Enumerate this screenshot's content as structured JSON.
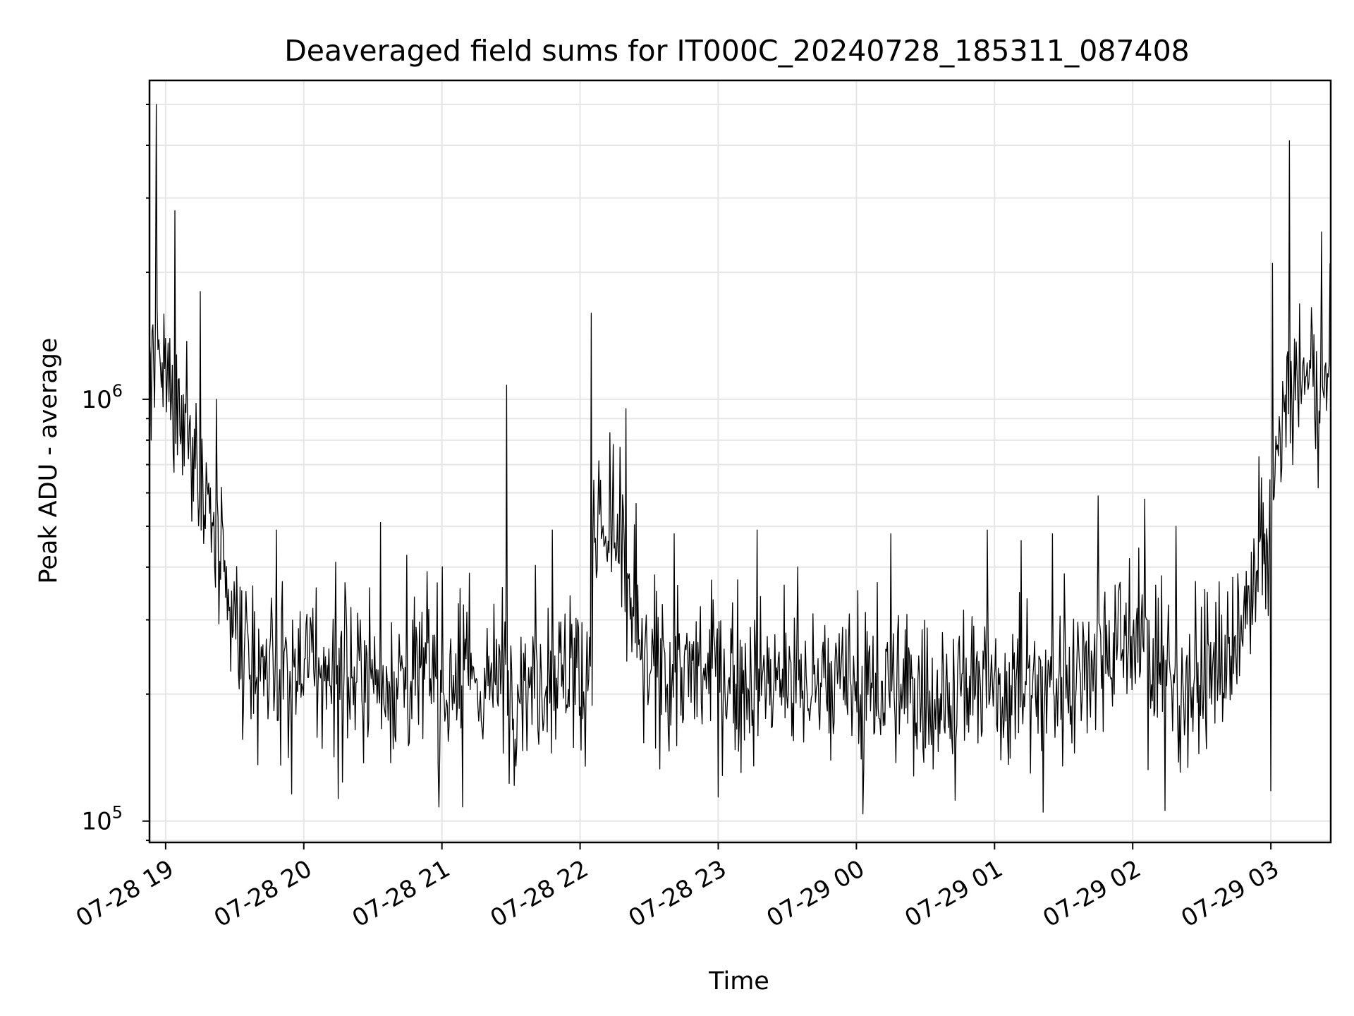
{
  "chart_data": {
    "type": "line",
    "title": "Deaveraged field sums for IT000C_20240728_185311_087408",
    "xlabel": "Time",
    "ylabel": "Peak ADU - average",
    "yscale": "log",
    "ylim": [
      89000,
      5700000
    ],
    "xlim": [
      "2024-07-28 18:53",
      "2024-07-29 03:26"
    ],
    "x_ticks": [
      "07-28 19",
      "07-28 20",
      "07-28 21",
      "07-28 22",
      "07-28 23",
      "07-29 00",
      "07-29 01",
      "07-29 02",
      "07-29 03"
    ],
    "y_ticks": [
      {
        "value": 100000,
        "base": "10",
        "exp": "5"
      },
      {
        "value": 1000000,
        "base": "10",
        "exp": "6"
      }
    ],
    "grid": true,
    "line_color": "#000000",
    "series": [
      {
        "profile": [
          {
            "t": "2024-07-28 18:53",
            "y": 1150000
          },
          {
            "t": "2024-07-28 19:03",
            "y": 1050000
          },
          {
            "t": "2024-07-28 19:11",
            "y": 800000
          },
          {
            "t": "2024-07-28 19:18",
            "y": 560000
          },
          {
            "t": "2024-07-28 19:26",
            "y": 330000
          },
          {
            "t": "2024-07-28 19:35",
            "y": 230000
          },
          {
            "t": "2024-07-28 20:30",
            "y": 220000
          },
          {
            "t": "2024-07-28 21:30",
            "y": 210000
          },
          {
            "t": "2024-07-28 21:55",
            "y": 230000
          },
          {
            "t": "2024-07-28 22:03",
            "y": 220000
          },
          {
            "t": "2024-07-28 22:07",
            "y": 480000
          },
          {
            "t": "2024-07-28 22:18",
            "y": 430000
          },
          {
            "t": "2024-07-28 22:22",
            "y": 330000
          },
          {
            "t": "2024-07-28 22:26",
            "y": 230000
          },
          {
            "t": "2024-07-28 23:30",
            "y": 210000
          },
          {
            "t": "2024-07-29 00:30",
            "y": 200000
          },
          {
            "t": "2024-07-29 01:30",
            "y": 210000
          },
          {
            "t": "2024-07-29 01:45",
            "y": 260000
          },
          {
            "t": "2024-07-29 02:00",
            "y": 270000
          },
          {
            "t": "2024-07-29 02:20",
            "y": 205000
          },
          {
            "t": "2024-07-29 02:45",
            "y": 240000
          },
          {
            "t": "2024-07-29 02:52",
            "y": 320000
          },
          {
            "t": "2024-07-29 03:00",
            "y": 520000
          },
          {
            "t": "2024-07-29 03:05",
            "y": 850000
          },
          {
            "t": "2024-07-29 03:10",
            "y": 1100000
          },
          {
            "t": "2024-07-29 03:26",
            "y": 1050000
          }
        ],
        "noise_dex": 0.09,
        "spikes": [
          {
            "t": "2024-07-28 18:56",
            "y": 5000000
          },
          {
            "t": "2024-07-28 19:04",
            "y": 2800000
          },
          {
            "t": "2024-07-28 19:15",
            "y": 1800000
          },
          {
            "t": "2024-07-28 19:22",
            "y": 1000000
          },
          {
            "t": "2024-07-28 19:48",
            "y": 490000
          },
          {
            "t": "2024-07-28 20:33",
            "y": 510000
          },
          {
            "t": "2024-07-28 21:28",
            "y": 1080000
          },
          {
            "t": "2024-07-28 21:48",
            "y": 490000
          },
          {
            "t": "2024-07-28 22:05",
            "y": 1600000
          },
          {
            "t": "2024-07-28 22:20",
            "y": 950000
          },
          {
            "t": "2024-07-28 22:41",
            "y": 480000
          },
          {
            "t": "2024-07-28 23:17",
            "y": 490000
          },
          {
            "t": "2024-07-29 00:15",
            "y": 480000
          },
          {
            "t": "2024-07-29 00:57",
            "y": 490000
          },
          {
            "t": "2024-07-29 01:25",
            "y": 480000
          },
          {
            "t": "2024-07-29 01:45",
            "y": 590000
          },
          {
            "t": "2024-07-29 02:05",
            "y": 580000
          },
          {
            "t": "2024-07-29 02:19",
            "y": 500000
          },
          {
            "t": "2024-07-29 03:01",
            "y": 2100000
          },
          {
            "t": "2024-07-29 03:08",
            "y": 4100000
          }
        ],
        "dips": [
          {
            "t": "2024-07-28 19:40",
            "y": 136000
          },
          {
            "t": "2024-07-28 19:55",
            "y": 116000
          },
          {
            "t": "2024-07-28 20:15",
            "y": 113000
          },
          {
            "t": "2024-07-28 20:59",
            "y": 108000
          },
          {
            "t": "2024-07-28 21:09",
            "y": 108000
          },
          {
            "t": "2024-07-28 23:00",
            "y": 114000
          },
          {
            "t": "2024-07-29 00:03",
            "y": 104000
          },
          {
            "t": "2024-07-29 00:43",
            "y": 112000
          },
          {
            "t": "2024-07-29 01:21",
            "y": 105000
          },
          {
            "t": "2024-07-29 02:14",
            "y": 106000
          },
          {
            "t": "2024-07-29 03:00",
            "y": 118000
          }
        ]
      }
    ]
  }
}
